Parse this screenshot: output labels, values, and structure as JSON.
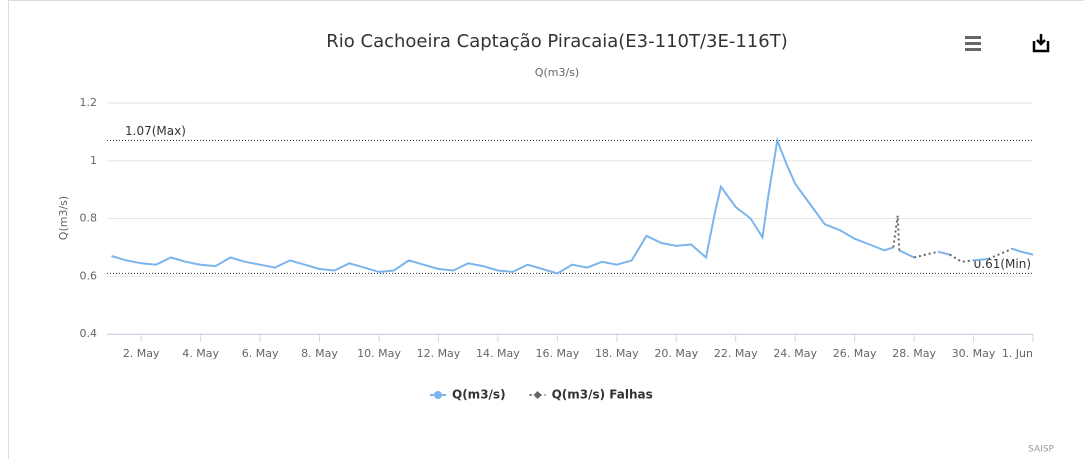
{
  "chart_data": {
    "type": "line",
    "title": "Rio Cachoeira Captação Piracaia(E3-110T/3E-116T)",
    "subtitle": "Q(m3/s)",
    "y_axis_label": "Q(m3/s)",
    "credits": "SAISP",
    "xlim": [
      0.85,
      32
    ],
    "xticks": [
      {
        "value": 2,
        "label": "2. May"
      },
      {
        "value": 4,
        "label": "4. May"
      },
      {
        "value": 6,
        "label": "6. May"
      },
      {
        "value": 8,
        "label": "8. May"
      },
      {
        "value": 10,
        "label": "10. May"
      },
      {
        "value": 12,
        "label": "12. May"
      },
      {
        "value": 14,
        "label": "14. May"
      },
      {
        "value": 16,
        "label": "16. May"
      },
      {
        "value": 18,
        "label": "18. May"
      },
      {
        "value": 20,
        "label": "20. May"
      },
      {
        "value": 22,
        "label": "22. May"
      },
      {
        "value": 24,
        "label": "24. May"
      },
      {
        "value": 26,
        "label": "26. May"
      },
      {
        "value": 28,
        "label": "28. May"
      },
      {
        "value": 30,
        "label": "30. May"
      },
      {
        "value": 32,
        "label": "1. Jun"
      }
    ],
    "ylim": [
      0.4,
      1.2
    ],
    "yticks": [
      0.4,
      0.6,
      0.8,
      1,
      1.2
    ],
    "grid": true,
    "plot_lines": [
      {
        "value": 1.07,
        "label": "1.07(Max)"
      },
      {
        "value": 0.61,
        "label": "0.61(Min)"
      }
    ],
    "series": [
      {
        "name": "Q(m3/s)",
        "color": "#7cb5ec",
        "dash": "solid",
        "x": [
          1,
          1.5,
          2,
          2.5,
          3,
          3.5,
          4,
          4.5,
          5,
          5.5,
          6,
          6.5,
          7,
          7.5,
          8,
          8.5,
          9,
          9.5,
          10,
          10.5,
          11,
          11.5,
          12,
          12.5,
          13,
          13.5,
          14,
          14.5,
          15,
          15.5,
          16,
          16.5,
          17,
          17.5,
          18,
          18.5,
          19,
          19.5,
          20,
          20.5,
          21,
          21.3,
          21.5,
          22,
          22.5,
          22.9,
          23.1,
          23.4,
          23.7,
          24,
          24.5,
          25,
          25.5,
          26,
          26.5,
          27,
          27.3,
          27.4,
          27.5,
          27.8,
          28,
          28.2,
          28.8,
          29.2,
          29.4,
          30,
          30.5,
          30.7,
          31.3,
          31.6,
          32
        ],
        "values": [
          0.67,
          0.655,
          0.645,
          0.64,
          0.665,
          0.65,
          0.64,
          0.635,
          0.665,
          0.65,
          0.64,
          0.63,
          0.655,
          0.64,
          0.625,
          0.62,
          0.645,
          0.63,
          0.615,
          0.62,
          0.655,
          0.64,
          0.625,
          0.62,
          0.645,
          0.635,
          0.62,
          0.615,
          0.64,
          0.625,
          0.61,
          0.64,
          0.63,
          0.65,
          0.64,
          0.655,
          0.74,
          0.715,
          0.705,
          0.71,
          0.665,
          0.82,
          0.91,
          0.84,
          0.8,
          0.735,
          0.88,
          1.07,
          0.99,
          0.92,
          0.85,
          0.78,
          0.76,
          0.73,
          0.71,
          0.69,
          0.7,
          null,
          0.69,
          0.675,
          0.665,
          null,
          0.685,
          0.675,
          null,
          0.655,
          0.66,
          null,
          0.695,
          0.685,
          0.675
        ]
      },
      {
        "name": "Q(m3/s) Falhas",
        "color": "#666666",
        "dash": "dotted",
        "x": [
          27.3,
          27.45,
          27.5,
          27.7,
          28,
          28.8,
          29,
          29.2,
          29.6,
          30,
          30.2,
          30.5,
          31.3
        ],
        "values": [
          0.7,
          0.81,
          0.69,
          null,
          0.665,
          0.685,
          null,
          0.675,
          0.65,
          0.655,
          null,
          0.66,
          0.695
        ]
      }
    ]
  }
}
